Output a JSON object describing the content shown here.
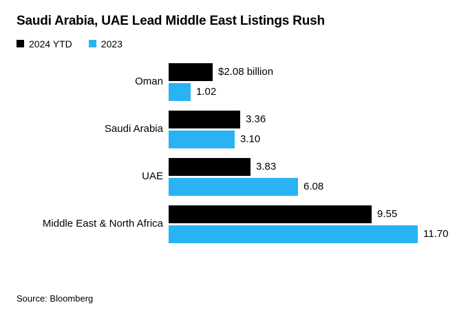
{
  "title": "Saudi Arabia, UAE Lead Middle East Listings Rush",
  "source": "Source: Bloomberg",
  "legend": [
    {
      "label": "2024 YTD",
      "color": "#000000"
    },
    {
      "label": "2023",
      "color": "#29b3f2"
    }
  ],
  "chart_data": {
    "type": "bar",
    "orientation": "horizontal",
    "title": "Saudi Arabia, UAE Lead Middle East Listings Rush",
    "categories": [
      "Oman",
      "Saudi Arabia",
      "UAE",
      "Middle East & North Africa"
    ],
    "series": [
      {
        "name": "2024 YTD",
        "key": "2024-ytd",
        "color": "#000000",
        "values": [
          2.08,
          3.36,
          3.83,
          9.55
        ],
        "labels": [
          "$2.08 billion",
          "3.36",
          "3.83",
          "9.55"
        ]
      },
      {
        "name": "2023",
        "key": "2023",
        "color": "#29b3f2",
        "values": [
          1.02,
          3.1,
          6.08,
          11.7
        ],
        "labels": [
          "1.02",
          "3.10",
          "6.08",
          "11.70"
        ]
      }
    ],
    "xlim": [
      0,
      11.7
    ],
    "grid": false,
    "legend_position": "top-left",
    "value_unit": "billion"
  }
}
